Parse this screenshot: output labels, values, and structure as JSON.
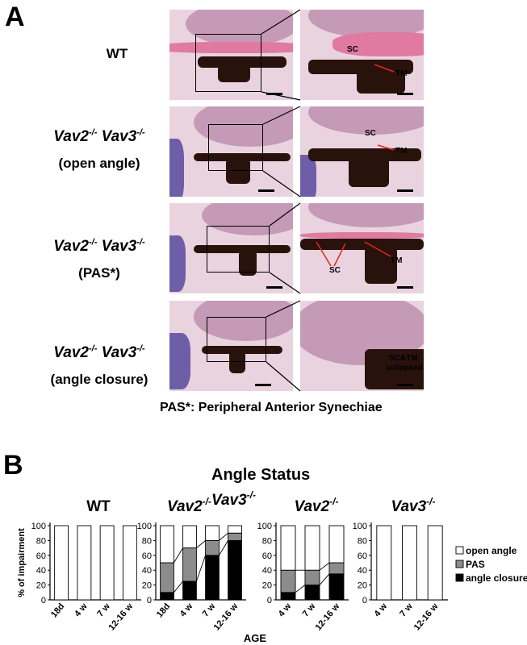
{
  "panel_a": {
    "letter": "A",
    "rows": [
      {
        "label_plain": "WT"
      },
      {
        "geno": [
          "Vav2",
          "-/-",
          " Vav3",
          "-/-"
        ],
        "sub": "(open angle)"
      },
      {
        "geno": [
          "Vav2",
          "-/-",
          " Vav3",
          "-/-"
        ],
        "sub": "(PAS*)"
      },
      {
        "geno": [
          "Vav2",
          "-/-",
          " Vav3",
          "-/-"
        ],
        "sub": "(angle closure)"
      }
    ],
    "annotations": {
      "sc": "SC",
      "tm": "TM",
      "collapsed_1": "SC&TM",
      "collapsed_2": "collapsed"
    },
    "caption": "PAS*: Peripheral Anterior Synechiae"
  },
  "panel_b": {
    "letter": "B",
    "title": "Angle Status",
    "ylabel": "% of impairment",
    "xlabel": "AGE",
    "legend": [
      "open angle",
      "PAS",
      "angle closure"
    ]
  },
  "chart_data": [
    {
      "type": "bar",
      "title": "WT",
      "categories": [
        "18d",
        "4 w",
        "7 w",
        "12-16 w"
      ],
      "series": [
        {
          "name": "open angle",
          "values": [
            100,
            100,
            100,
            100
          ]
        },
        {
          "name": "PAS",
          "values": [
            0,
            0,
            0,
            0
          ]
        },
        {
          "name": "angle closure",
          "values": [
            0,
            0,
            0,
            0
          ]
        }
      ],
      "yticks": [
        0,
        20,
        40,
        60,
        80,
        100
      ],
      "ylim": [
        0,
        100
      ]
    },
    {
      "type": "bar",
      "title_parts": [
        "Vav2",
        "-/-",
        "Vav3",
        "-/-"
      ],
      "categories": [
        "18d",
        "4 w",
        "7 w",
        "12-16 w"
      ],
      "series": [
        {
          "name": "open angle",
          "values": [
            50,
            30,
            20,
            10
          ]
        },
        {
          "name": "PAS",
          "values": [
            40,
            45,
            20,
            10
          ]
        },
        {
          "name": "angle closure",
          "values": [
            10,
            25,
            60,
            80
          ]
        }
      ],
      "yticks": [
        0,
        20,
        40,
        60,
        80,
        100
      ],
      "ylim": [
        0,
        100
      ]
    },
    {
      "type": "bar",
      "title_parts": [
        "Vav2",
        "-/-"
      ],
      "categories": [
        "4 w",
        "7 w",
        "12-16 w"
      ],
      "series": [
        {
          "name": "open angle",
          "values": [
            60,
            60,
            50
          ]
        },
        {
          "name": "PAS",
          "values": [
            30,
            20,
            15
          ]
        },
        {
          "name": "angle closure",
          "values": [
            10,
            20,
            35
          ]
        }
      ],
      "yticks": [
        0,
        20,
        40,
        60,
        80,
        100
      ],
      "ylim": [
        0,
        100
      ]
    },
    {
      "type": "bar",
      "title_parts": [
        "Vav3",
        "-/-"
      ],
      "categories": [
        "4 w",
        "7 w",
        "12-16 w"
      ],
      "series": [
        {
          "name": "open angle",
          "values": [
            100,
            100,
            100
          ]
        },
        {
          "name": "PAS",
          "values": [
            0,
            0,
            0
          ]
        },
        {
          "name": "angle closure",
          "values": [
            0,
            0,
            0
          ]
        }
      ],
      "yticks": [
        0,
        20,
        40,
        60,
        80,
        100
      ],
      "ylim": [
        0,
        100
      ]
    }
  ],
  "colors": {
    "open": "#ffffff",
    "pas": "#8c8c8c",
    "closure": "#000000"
  }
}
